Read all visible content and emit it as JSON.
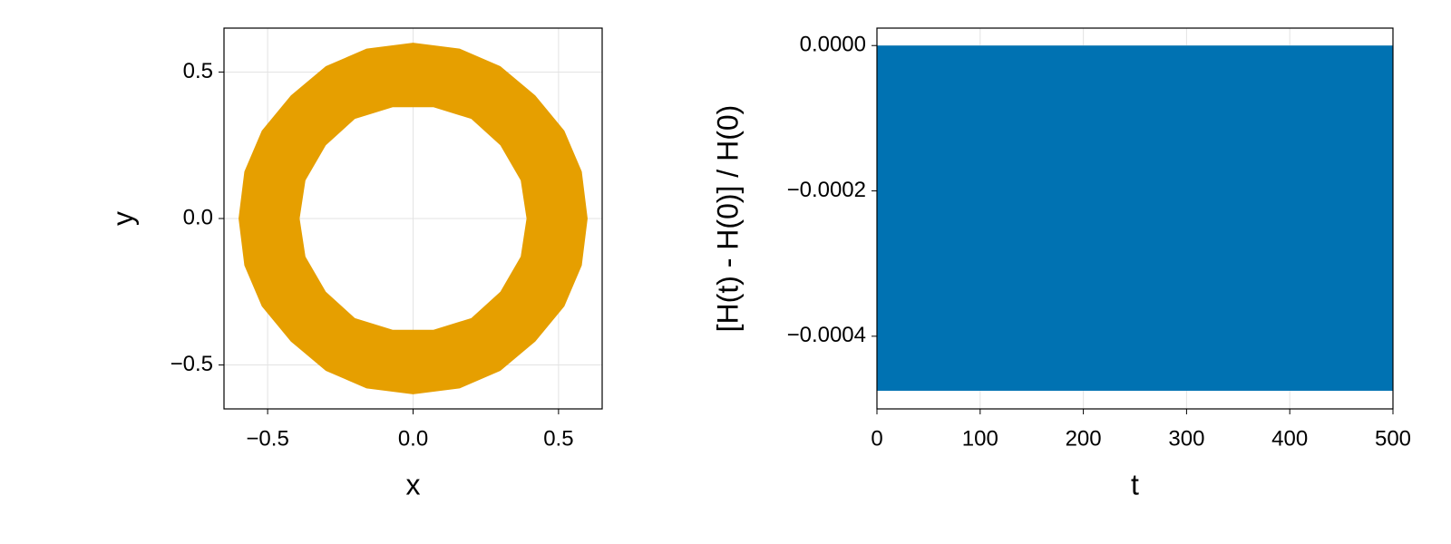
{
  "chart_data": [
    {
      "type": "band",
      "xlabel": "x",
      "ylabel": "y",
      "outer": {
        "x": [
          0.6,
          0.58,
          0.52,
          0.42,
          0.3,
          0.16,
          0,
          -0.16,
          -0.3,
          -0.42,
          -0.52,
          -0.58,
          -0.6,
          -0.58,
          -0.52,
          -0.42,
          -0.3,
          -0.16,
          0,
          0.16,
          0.3,
          0.42,
          0.52,
          0.58
        ],
        "y": [
          0,
          0.16,
          0.3,
          0.42,
          0.52,
          0.58,
          0.6,
          0.58,
          0.52,
          0.42,
          0.3,
          0.16,
          0,
          -0.16,
          -0.3,
          -0.42,
          -0.52,
          -0.58,
          -0.6,
          -0.58,
          -0.52,
          -0.42,
          -0.3,
          -0.16
        ]
      },
      "inner": {
        "x": [
          0.39,
          0.37,
          0.3,
          0.2,
          0.07,
          -0.07,
          -0.2,
          -0.3,
          -0.37,
          -0.39,
          -0.37,
          -0.3,
          -0.2,
          -0.07,
          0.07,
          0.2,
          0.3,
          0.37
        ],
        "y": [
          0,
          0.13,
          0.25,
          0.34,
          0.38,
          0.38,
          0.34,
          0.25,
          0.13,
          0,
          -0.13,
          -0.25,
          -0.34,
          -0.38,
          -0.38,
          -0.34,
          -0.25,
          -0.13
        ]
      },
      "color": "#e69f00",
      "xlim": [
        -0.65,
        0.65
      ],
      "ylim": [
        -0.65,
        0.65
      ],
      "xticks": [
        {
          "value": -0.5,
          "label": "−0.5"
        },
        {
          "value": 0,
          "label": "0.0"
        },
        {
          "value": 0.5,
          "label": "0.5"
        }
      ],
      "yticks": [
        {
          "value": -0.5,
          "label": "−0.5"
        },
        {
          "value": 0,
          "label": "0.0"
        },
        {
          "value": 0.5,
          "label": "0.5"
        }
      ],
      "grid": true
    },
    {
      "type": "band",
      "xlabel": "t",
      "ylabel": "[H(t) - H(0)] / H(0)",
      "x": [
        0,
        500
      ],
      "upper": [
        0,
        0
      ],
      "lower": [
        -0.000475,
        -0.000475
      ],
      "color": "#0072b2",
      "xlim": [
        0,
        500
      ],
      "ylim": [
        -0.0005,
        2.4e-05
      ],
      "xticks": [
        0,
        100,
        200,
        300,
        400,
        500
      ],
      "yticks": [
        {
          "value": 0,
          "label": "0.0000"
        },
        {
          "value": -0.0002,
          "label": "−0.0002"
        },
        {
          "value": -0.0004,
          "label": "−0.0004"
        }
      ],
      "grid": true
    }
  ]
}
